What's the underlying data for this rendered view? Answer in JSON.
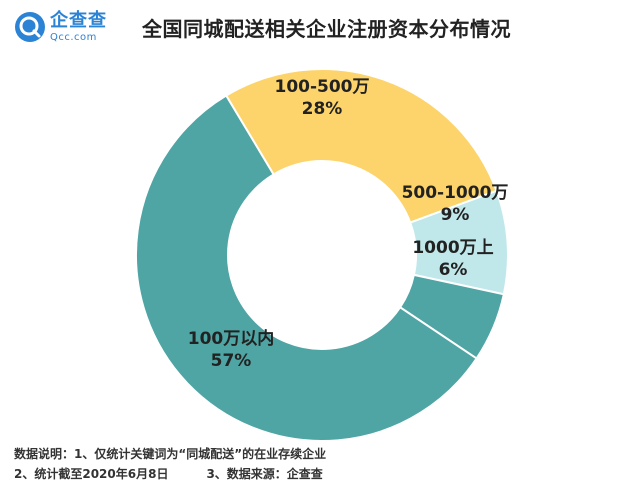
{
  "header": {
    "logo_name": "企查查",
    "logo_domain": "Qcc.com",
    "title": "全国同城配送相关企业注册资本分布情况"
  },
  "chart_data": {
    "type": "pie",
    "title": "全国同城配送相关企业注册资本分布情况",
    "categories": [
      "100-500万",
      "500-1000万",
      "1000万上",
      "100万以内"
    ],
    "values": [
      28,
      9,
      6,
      57
    ],
    "value_labels": [
      "28%",
      "9%",
      "6%",
      "57%"
    ],
    "colors": [
      "#fcd46b",
      "#c0e8eb",
      "#4fa4a4",
      "#4fa4a4"
    ],
    "donut": true,
    "legend": "none"
  },
  "footer": {
    "note1": "数据说明：1、仅统计关键词为“同城配送”的在业存续企业",
    "note2": "2、统计截至2020年6月8日",
    "note3": "3、数据来源：企查查"
  }
}
